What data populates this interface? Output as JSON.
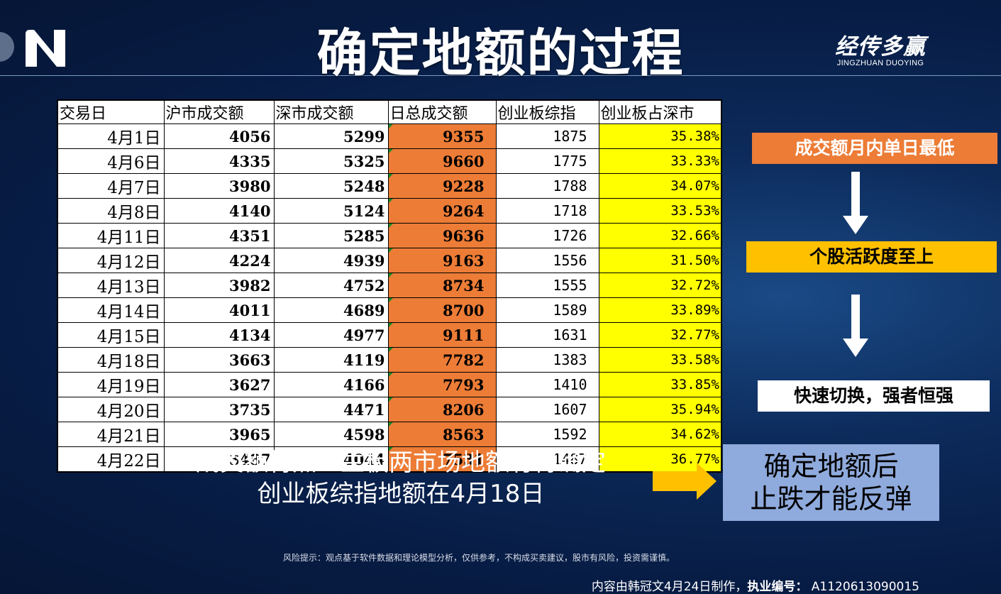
{
  "header": {
    "title": "确定地额的过程",
    "brand_cn": "经传多赢",
    "brand_en": "JINGZHUAN DUOYING"
  },
  "table": {
    "columns": [
      "交易日",
      "沪市成交额",
      "深市成交额",
      "日总成交额",
      "创业板综指",
      "创业板占深市"
    ],
    "rows": [
      [
        "4月1日",
        "4056",
        "5299",
        "9355",
        "1875",
        "35.38%"
      ],
      [
        "4月6日",
        "4335",
        "5325",
        "9660",
        "1775",
        "33.33%"
      ],
      [
        "4月7日",
        "3980",
        "5248",
        "9228",
        "1788",
        "34.07%"
      ],
      [
        "4月8日",
        "4140",
        "5124",
        "9264",
        "1718",
        "33.53%"
      ],
      [
        "4月11日",
        "4351",
        "5285",
        "9636",
        "1726",
        "32.66%"
      ],
      [
        "4月12日",
        "4224",
        "4939",
        "9163",
        "1556",
        "31.50%"
      ],
      [
        "4月13日",
        "3982",
        "4752",
        "8734",
        "1555",
        "32.72%"
      ],
      [
        "4月14日",
        "4011",
        "4689",
        "8700",
        "1589",
        "33.89%"
      ],
      [
        "4月15日",
        "4134",
        "4977",
        "9111",
        "1631",
        "32.77%"
      ],
      [
        "4月18日",
        "3663",
        "4119",
        "7782",
        "1383",
        "33.58%"
      ],
      [
        "4月19日",
        "3627",
        "4166",
        "7793",
        "1410",
        "33.85%"
      ],
      [
        "4月20日",
        "3735",
        "4471",
        "8206",
        "1607",
        "35.94%"
      ],
      [
        "4月21日",
        "3965",
        "4598",
        "8563",
        "1592",
        "34.62%"
      ],
      [
        "4月22日",
        "3487",
        "4044",
        "7531",
        "1487",
        "36.77%"
      ]
    ]
  },
  "steps": {
    "step1": "成交额月内单日最低",
    "step2": "个股活跃度至上",
    "step3": "快速切换，强者恒强"
  },
  "conclusion": {
    "line1": "确定地额后",
    "line2": "止跌才能反弹"
  },
  "summary": {
    "line1": "成交额特点：主板两市场地额有待确定",
    "line2": "创业板综指地额在4月18日"
  },
  "risk_notice": "风险提示：观点基于软件数据和理论模型分析，仅供参考，不构成买卖建议，股市有风险，投资需谨慎。",
  "footer": {
    "made_by": "内容由韩冠文4月24日制作，",
    "license_label": "执业编号：",
    "license_number": "A1120613090015"
  },
  "colors": {
    "orange": "#ec7c36",
    "yellow": "#ffff00",
    "gold": "#ffc000",
    "blue_box": "#8faadc"
  },
  "icons": [
    "company-logo-icon",
    "down-arrow-icon",
    "right-arrow-icon"
  ]
}
